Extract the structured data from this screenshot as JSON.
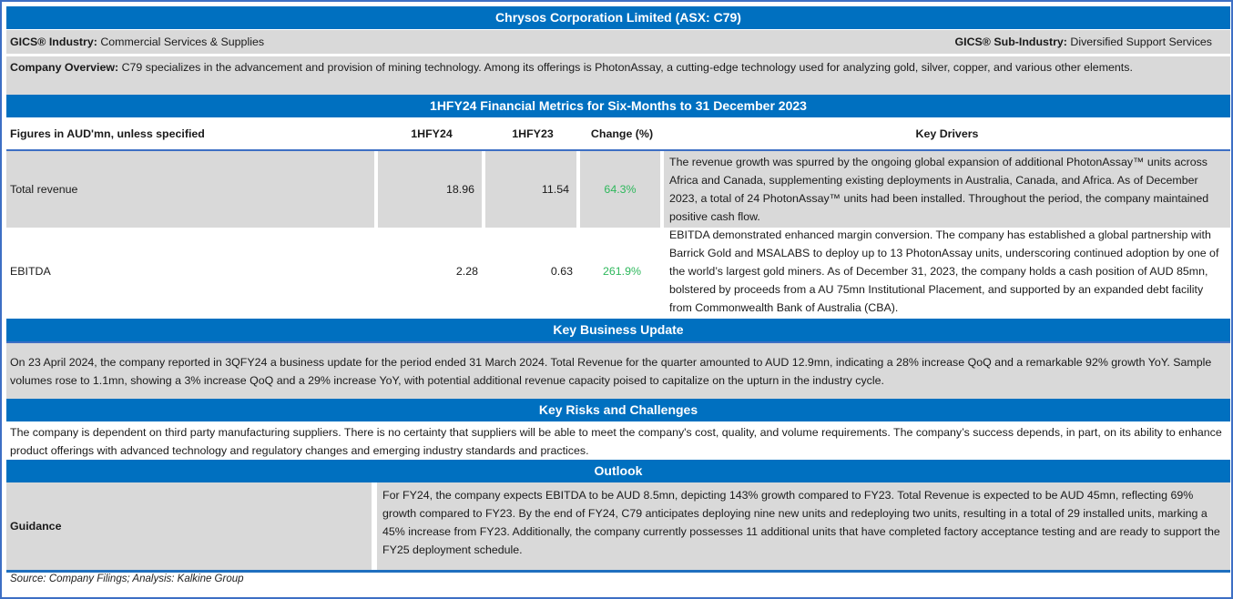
{
  "title": "Chrysos Corporation Limited (ASX: C79)",
  "gics": {
    "industry_label": "GICS® Industry:",
    "industry_value": " Commercial Services & Supplies",
    "sub_industry_label": "GICS® Sub-Industry:",
    "sub_industry_value": " Diversified Support Services"
  },
  "overview": {
    "label": "Company Overview:",
    "text": " C79 specializes in the advancement and provision of mining technology. Among its offerings is PhotonAssay, a cutting-edge technology used for analyzing gold, silver, copper, and various other elements."
  },
  "metrics": {
    "title": "1HFY24 Financial Metrics for Six-Months to 31 December 2023",
    "headers": [
      "Figures in AUD'mn, unless specified",
      "1HFY24",
      "1HFY23",
      "Change (%)",
      "Key Drivers"
    ],
    "rows": [
      {
        "metric": "Total revenue",
        "current": "18.96",
        "prior": "11.54",
        "change": "64.3%",
        "drivers": "The revenue growth was spurred by the ongoing global expansion of additional PhotonAssay™ units across Africa and Canada, supplementing existing deployments in Australia, Canada, and Africa. As of December 2023, a total of 24 PhotonAssay™ units had been installed. Throughout the period, the company maintained positive cash flow."
      },
      {
        "metric": "EBITDA",
        "current": "2.28",
        "prior": "0.63",
        "change": "261.9%",
        "drivers": "EBITDA demonstrated enhanced margin conversion. The company has established a global partnership with Barrick Gold and MSALABS to deploy up to 13 PhotonAssay units, underscoring continued adoption by one of the world’s largest gold miners. As of December 31, 2023, the company holds a cash position of AUD 85mn, bolstered by proceeds from a AU 75mn Institutional Placement, and supported by an expanded debt facility from Commonwealth Bank of Australia (CBA)."
      }
    ]
  },
  "business_update": {
    "title": "Key Business Update",
    "text": "On 23 April 2024, the company reported in 3QFY24 a business update for the period ended 31 March 2024. Total Revenue for the quarter amounted to AUD 12.9mn, indicating a 28% increase QoQ and a remarkable 92% growth YoY. Sample volumes rose to 1.1mn, showing a 3% increase QoQ and a 29% increase YoY, with potential additional revenue capacity poised to capitalize on the upturn in the industry cycle."
  },
  "risks": {
    "title": "Key Risks and Challenges",
    "text": "The company is dependent on third party manufacturing suppliers. There is no certainty that suppliers will be able to meet the company's cost, quality, and volume requirements. The company’s success depends, in part, on its ability to enhance product offerings with advanced technology and regulatory changes and emerging industry standards and practices."
  },
  "outlook": {
    "title": "Outlook",
    "guidance_label": "Guidance",
    "guidance_text": "For FY24, the company expects EBITDA to be AUD 8.5mn, depicting 143% growth compared to FY23. Total Revenue is expected to be AUD 45mn, reflecting 69% growth compared to FY23. By the end of FY24, C79 anticipates deploying nine new units and redeploying two units, resulting in a total of 29 installed units, marking a 45% increase from FY23. Additionally, the company currently possesses 11 additional units that have completed factory acceptance testing and are ready to support the FY25 deployment schedule."
  },
  "source": "Source: Company Filings; Analysis: Kalkine Group",
  "colors": {
    "band_blue": "#0070c0",
    "row_gray": "#d9d9d9",
    "positive_green": "#2eb85c",
    "border_blue": "#3d6fc4"
  }
}
